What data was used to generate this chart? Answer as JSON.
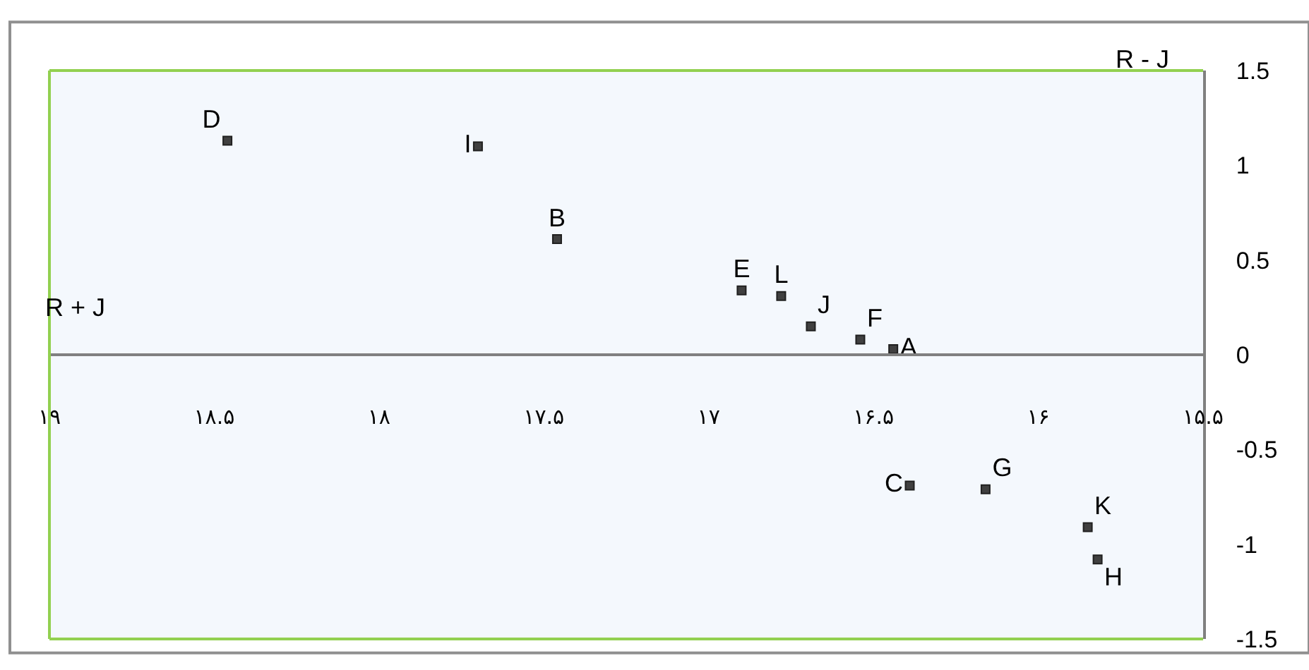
{
  "chart_data": {
    "type": "scatter",
    "xlabel": "R + J",
    "ylabel": "R - J",
    "xlim": [
      19,
      15.5
    ],
    "xticks": [
      {
        "value": 19,
        "label": "۱۹"
      },
      {
        "value": 18.5,
        "label": "۱۸.۵"
      },
      {
        "value": 18,
        "label": "۱۸"
      },
      {
        "value": 17.5,
        "label": "۱۷.۵"
      },
      {
        "value": 17,
        "label": "۱۷"
      },
      {
        "value": 16.5,
        "label": "۱۶.۵"
      },
      {
        "value": 16,
        "label": "۱۶"
      },
      {
        "value": 15.5,
        "label": "۱۵.۵"
      }
    ],
    "ylim": [
      -1.5,
      1.5
    ],
    "yticks": [
      -1.5,
      -1,
      -0.5,
      0,
      0.5,
      1,
      1.5
    ],
    "grid": false,
    "legend": false,
    "marker": "square",
    "series": [
      {
        "name": "A",
        "color": "#404040",
        "x": [
          16.44
        ],
        "values": [
          0.03
        ]
      },
      {
        "name": "B",
        "color": "#404040",
        "x": [
          17.46
        ],
        "values": [
          0.61
        ]
      },
      {
        "name": "C",
        "color": "#404040",
        "x": [
          16.39
        ],
        "values": [
          -0.69
        ]
      },
      {
        "name": "D",
        "color": "#404040",
        "x": [
          18.46
        ],
        "values": [
          1.13
        ]
      },
      {
        "name": "E",
        "color": "#404040",
        "x": [
          16.9
        ],
        "values": [
          0.34
        ]
      },
      {
        "name": "F",
        "color": "#404040",
        "x": [
          16.54
        ],
        "values": [
          0.08
        ]
      },
      {
        "name": "G",
        "color": "#404040",
        "x": [
          16.16
        ],
        "values": [
          -0.71
        ]
      },
      {
        "name": "H",
        "color": "#404040",
        "x": [
          15.82
        ],
        "values": [
          -1.08
        ]
      },
      {
        "name": "I",
        "color": "#404040",
        "x": [
          17.7
        ],
        "values": [
          1.1
        ]
      },
      {
        "name": "J",
        "color": "#404040",
        "x": [
          16.69
        ],
        "values": [
          0.15
        ]
      },
      {
        "name": "K",
        "color": "#404040",
        "x": [
          15.85
        ],
        "values": [
          -0.91
        ]
      },
      {
        "name": "L",
        "color": "#404040",
        "x": [
          16.78
        ],
        "values": [
          0.31
        ]
      }
    ]
  }
}
